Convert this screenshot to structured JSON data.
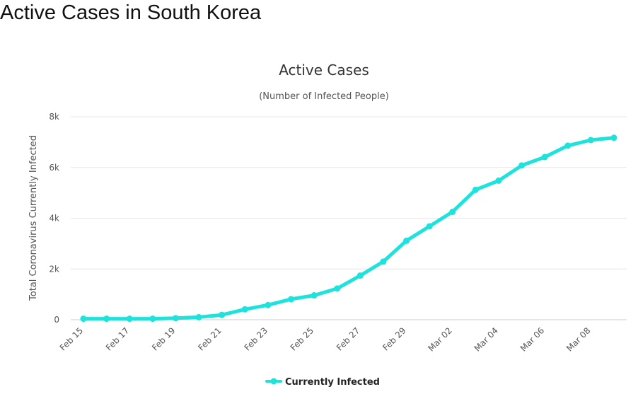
{
  "page": {
    "heading": "Active Cases in South Korea"
  },
  "chart_data": {
    "type": "line",
    "title": "Active Cases",
    "subtitle": "(Number of Infected People)",
    "xlabel": "",
    "ylabel": "Total Coronavirus Currently Infected",
    "ylim": [
      0,
      8000
    ],
    "yticks": [
      0,
      2000,
      4000,
      6000,
      8000
    ],
    "ytick_labels": [
      "0",
      "2k",
      "4k",
      "6k",
      "8k"
    ],
    "x": [
      "Feb 15",
      "Feb 16",
      "Feb 17",
      "Feb 18",
      "Feb 19",
      "Feb 20",
      "Feb 21",
      "Feb 22",
      "Feb 23",
      "Feb 24",
      "Feb 25",
      "Feb 26",
      "Feb 27",
      "Feb 28",
      "Feb 29",
      "Mar 01",
      "Mar 02",
      "Mar 03",
      "Mar 04",
      "Mar 05",
      "Mar 06",
      "Mar 07",
      "Mar 08",
      "Mar 09"
    ],
    "xtick_labels": [
      "Feb 15",
      "Feb 17",
      "Feb 19",
      "Feb 21",
      "Feb 23",
      "Feb 25",
      "Feb 27",
      "Feb 29",
      "Mar 02",
      "Mar 04",
      "Mar 06",
      "Mar 08"
    ],
    "series": [
      {
        "name": "Currently Infected",
        "color": "#1ee3dc",
        "values": [
          40,
          40,
          40,
          40,
          60,
          100,
          190,
          410,
          580,
          810,
          960,
          1230,
          1740,
          2290,
          3110,
          3680,
          4250,
          5120,
          5480,
          6080,
          6410,
          6860,
          7080,
          7170
        ]
      }
    ],
    "grid": true,
    "legend": "bottom-center"
  }
}
